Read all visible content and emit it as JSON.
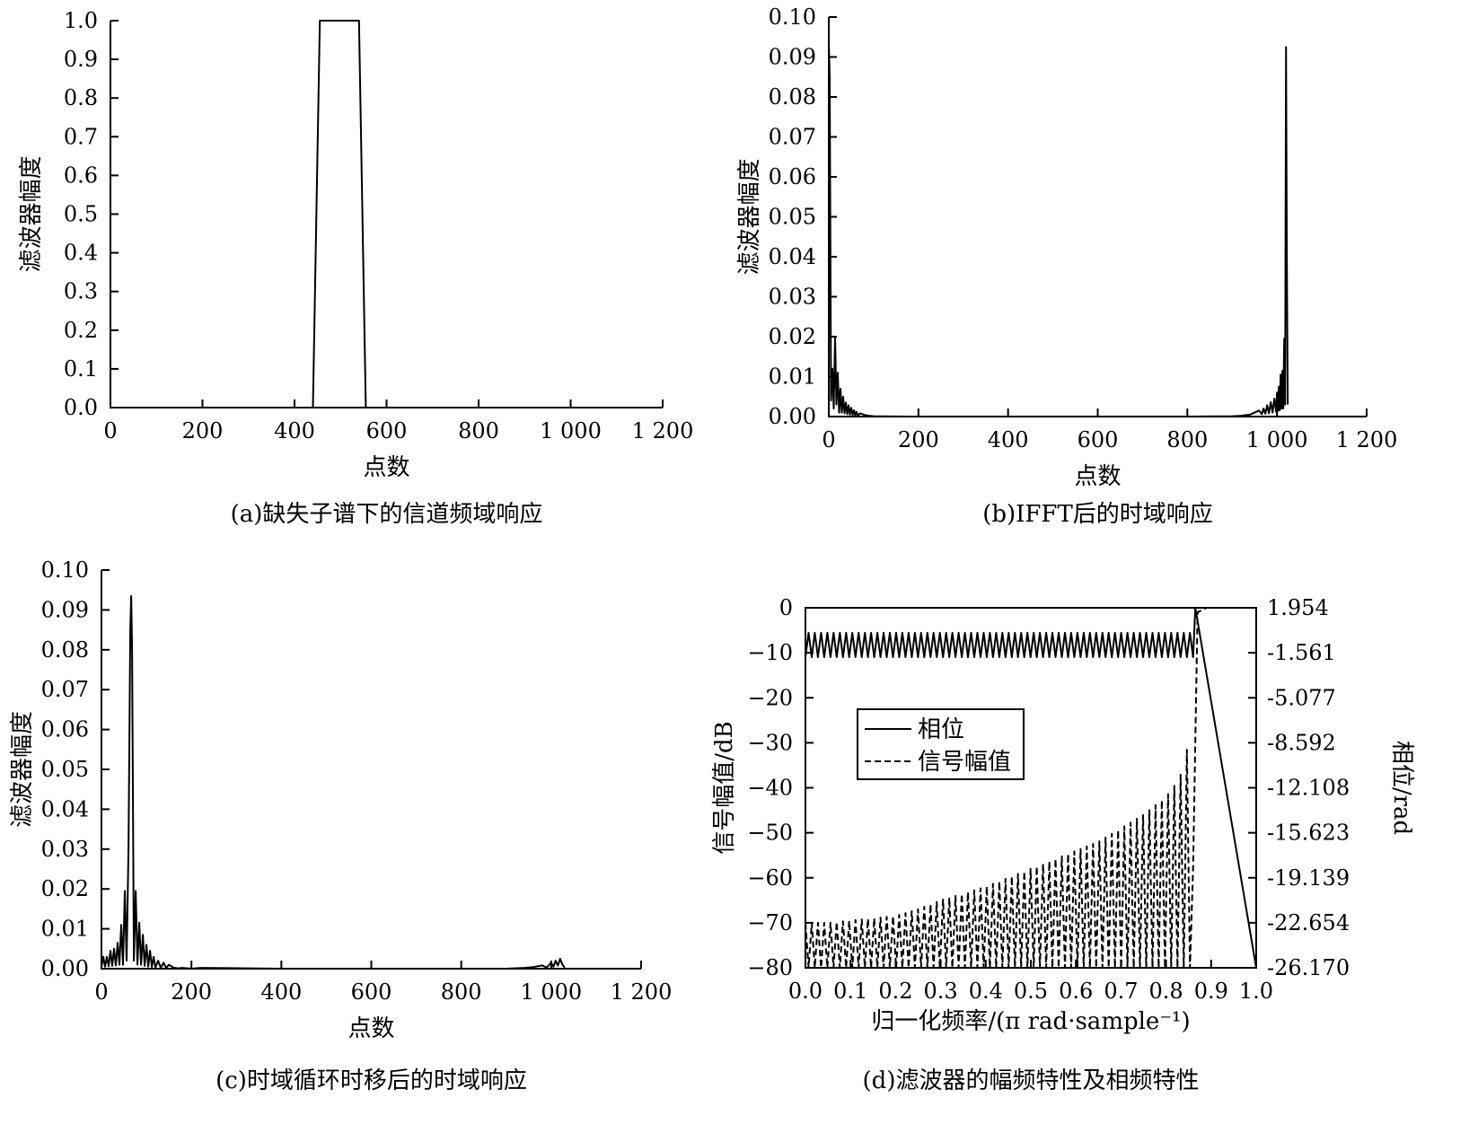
{
  "chart_data": [
    {
      "id": "a",
      "type": "line",
      "caption": "(a)缺失子谱下的信道频域响应",
      "xlabel": "点数",
      "ylabel": "滤波器幅度",
      "xlim": [
        0,
        1200
      ],
      "ylim": [
        0,
        1.0
      ],
      "x_ticks": [
        0,
        200,
        400,
        600,
        800,
        1000,
        1200
      ],
      "x_tick_labels": [
        "0",
        "200",
        "400",
        "600",
        "800",
        "1 000",
        "1 200"
      ],
      "y_ticks": [
        0,
        0.1,
        0.2,
        0.3,
        0.4,
        0.5,
        0.6,
        0.7,
        0.8,
        0.9,
        1.0
      ],
      "y_tick_labels": [
        "0.0",
        "0.1",
        "0.2",
        "0.3",
        "0.4",
        "0.5",
        "0.6",
        "0.7",
        "0.8",
        "0.9",
        "1.0"
      ],
      "series": [
        {
          "style": "solid",
          "x": [
            0,
            440,
            455,
            540,
            555,
            1200
          ],
          "y": [
            0,
            0,
            1.0,
            1.0,
            0,
            0
          ]
        }
      ]
    },
    {
      "id": "b",
      "type": "line",
      "caption": "(b)IFFT后的时域响应",
      "xlabel": "点数",
      "ylabel": "滤波器幅度",
      "xlim": [
        0,
        1200
      ],
      "ylim": [
        0,
        0.1
      ],
      "x_ticks": [
        0,
        200,
        400,
        600,
        800,
        1000,
        1200
      ],
      "x_tick_labels": [
        "0",
        "200",
        "400",
        "600",
        "800",
        "1 000",
        "1 200"
      ],
      "y_ticks": [
        0,
        0.01,
        0.02,
        0.03,
        0.04,
        0.05,
        0.06,
        0.07,
        0.08,
        0.09,
        0.1
      ],
      "y_tick_labels": [
        "0.00",
        "0.01",
        "0.02",
        "0.03",
        "0.04",
        "0.05",
        "0.06",
        "0.07",
        "0.08",
        "0.09",
        "0.10"
      ],
      "series": [
        {
          "style": "solid",
          "x": [
            0,
            2,
            5,
            8,
            11,
            14,
            17,
            20,
            23,
            26,
            29,
            32,
            35,
            38,
            41,
            44,
            47,
            50,
            53,
            56,
            59,
            62,
            65,
            70,
            80,
            90,
            100,
            120,
            200,
            400,
            600,
            800,
            900,
            920,
            940,
            950,
            960,
            966,
            970,
            974,
            978,
            982,
            986,
            990,
            994,
            998,
            1000,
            1002,
            1004,
            1006,
            1008,
            1010,
            1012,
            1014,
            1016,
            1018,
            1020,
            1022,
            1024
          ],
          "y": [
            0.094,
            0.085,
            0.004,
            0.012,
            0.002,
            0.02,
            0.003,
            0.011,
            0.001,
            0.007,
            0.001,
            0.005,
            0.0008,
            0.0035,
            0.0006,
            0.0028,
            0.0005,
            0.0022,
            0.0004,
            0.0016,
            0.0003,
            0.0012,
            0.0002,
            0.0008,
            0.0004,
            0.0002,
            0.0001,
            5e-05,
            0,
            0,
            0,
            0,
            0.0001,
            0.0002,
            0.0005,
            0.001,
            0.0015,
            0.0006,
            0.002,
            0.0007,
            0.0028,
            0.0008,
            0.0036,
            0.001,
            0.0045,
            0.0012,
            0.006,
            0.0014,
            0.0075,
            0.0016,
            0.0105,
            0.002,
            0.0115,
            0.002,
            0.0195,
            0.003,
            0.0925,
            0.04,
            0.003
          ]
        }
      ]
    },
    {
      "id": "c",
      "type": "line",
      "caption": "(c)时域循环时移后的时域响应",
      "xlabel": "点数",
      "ylabel": "滤波器幅度",
      "xlim": [
        0,
        1200
      ],
      "ylim": [
        0,
        0.1
      ],
      "x_ticks": [
        0,
        200,
        400,
        600,
        800,
        1000,
        1200
      ],
      "x_tick_labels": [
        "0",
        "200",
        "400",
        "600",
        "800",
        "1 000",
        "1 200"
      ],
      "y_ticks": [
        0,
        0.01,
        0.02,
        0.03,
        0.04,
        0.05,
        0.06,
        0.07,
        0.08,
        0.09,
        0.1
      ],
      "y_tick_labels": [
        "0.00",
        "0.01",
        "0.02",
        "0.03",
        "0.04",
        "0.05",
        "0.06",
        "0.07",
        "0.08",
        "0.09",
        "0.10"
      ],
      "series": [
        {
          "style": "solid",
          "x": [
            0,
            4,
            8,
            12,
            16,
            20,
            24,
            28,
            32,
            36,
            40,
            44,
            48,
            52,
            56,
            60,
            64,
            66,
            68,
            72,
            76,
            80,
            84,
            88,
            92,
            96,
            100,
            104,
            108,
            112,
            116,
            120,
            126,
            132,
            138,
            144,
            150,
            160,
            170,
            180,
            200,
            220,
            400,
            600,
            800,
            900,
            940,
            960,
            980,
            990,
            1000,
            1005,
            1010,
            1015,
            1020,
            1025,
            1030
          ],
          "y": [
            0.0005,
            0.003,
            0.0005,
            0.003,
            0.0006,
            0.0045,
            0.0007,
            0.005,
            0.0008,
            0.0065,
            0.001,
            0.011,
            0.001,
            0.0195,
            0.002,
            0.03,
            0.085,
            0.0935,
            0.08,
            0.002,
            0.0195,
            0.001,
            0.0115,
            0.001,
            0.0085,
            0.0007,
            0.006,
            0.0005,
            0.0045,
            0.0004,
            0.003,
            0.0003,
            0.002,
            0.0002,
            0.0015,
            0.0002,
            0.001,
            0.0003,
            0.0001,
            0.0002,
            0,
            0.0002,
            0,
            0,
            0,
            0,
            0.0002,
            0.0004,
            0.0008,
            0.0003,
            0.0015,
            0.0005,
            0.002,
            0.0008,
            0.0025,
            0.001,
            0.0003
          ]
        }
      ]
    },
    {
      "id": "d",
      "type": "line",
      "caption": "(d)滤波器的幅频特性及相频特性",
      "xlabel": "归一化频率/(π rad·sample⁻¹)",
      "ylabel": "信号幅值/dB",
      "ylabel_right": "相位/rad",
      "xlim": [
        0,
        1.0
      ],
      "ylim": [
        -80,
        0
      ],
      "ylim_right": [
        -26.17,
        1.954
      ],
      "x_ticks": [
        0,
        0.1,
        0.2,
        0.3,
        0.4,
        0.5,
        0.6,
        0.7,
        0.8,
        0.9,
        1.0
      ],
      "x_tick_labels": [
        "0.0",
        "0.1",
        "0.2",
        "0.3",
        "0.4",
        "0.5",
        "0.6",
        "0.7",
        "0.8",
        "0.9",
        "1.0"
      ],
      "y_ticks": [
        0,
        -10,
        -20,
        -30,
        -40,
        -50,
        -60,
        -70,
        -80
      ],
      "y_tick_labels": [
        "0",
        "−10",
        "−20",
        "−30",
        "−40",
        "−50",
        "−60",
        "−70",
        "−80"
      ],
      "y_right_ticks": [
        1.954,
        -1.561,
        -5.077,
        -8.592,
        -12.108,
        -15.623,
        -19.139,
        -22.654,
        -26.17
      ],
      "y_right_tick_labels": [
        "1.954",
        "-1.561",
        "-5.077",
        "-8.592",
        "-12.108",
        "-15.623",
        "-19.139",
        "-22.654",
        "-26.170"
      ],
      "legend": {
        "position": "upper-left",
        "entries": [
          "相位",
          "信号幅值"
        ]
      },
      "series": [
        {
          "name": "相位",
          "style": "solid",
          "axis": "right",
          "x": [
            0,
            0.86,
            0.865,
            1.0
          ],
          "y": [
            -1.0,
            -1.0,
            1.954,
            -26.17
          ],
          "ripple": {
            "x_end": 0.86,
            "cycles": 62,
            "y_top": 0.0,
            "y_bottom": -1.9
          }
        },
        {
          "name": "信号幅值",
          "style": "dashed",
          "axis": "left",
          "x": [
            0.0,
            0.05,
            0.1,
            0.15,
            0.2,
            0.25,
            0.3,
            0.35,
            0.4,
            0.45,
            0.5,
            0.55,
            0.6,
            0.65,
            0.7,
            0.75,
            0.8,
            0.83,
            0.85,
            0.86,
            0.87,
            0.89,
            0.9,
            1.0
          ],
          "y": [
            -70,
            -70,
            -69.5,
            -69,
            -68.5,
            -67,
            -65,
            -63.5,
            -62,
            -60,
            -58,
            -56,
            -54,
            -52,
            -49,
            -46,
            -42,
            -38,
            -30,
            -58,
            -1,
            0,
            0,
            0
          ],
          "ripple": {
            "x_end": 0.86,
            "cycles": 62,
            "floor": -80
          }
        }
      ]
    }
  ]
}
